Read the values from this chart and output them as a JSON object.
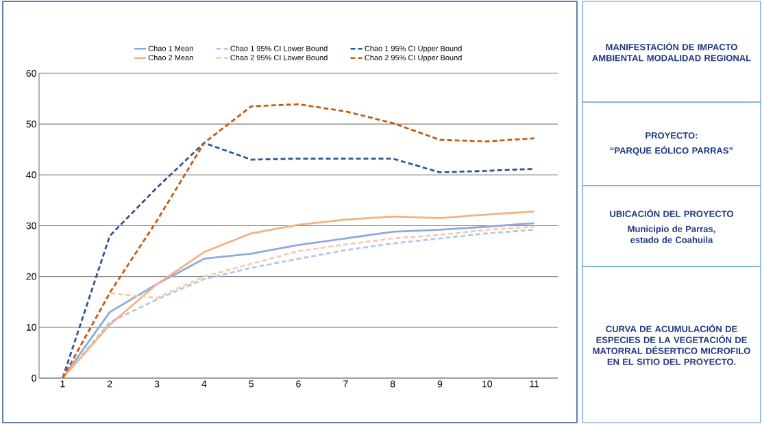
{
  "chart_data": {
    "type": "line",
    "categories": [
      "1",
      "2",
      "3",
      "4",
      "5",
      "6",
      "7",
      "8",
      "9",
      "10",
      "11"
    ],
    "series": [
      {
        "name": "Chao 1 Mean",
        "color": "#8eaadb",
        "line_style": "solid",
        "values": [
          0,
          13,
          18.5,
          23.5,
          24.5,
          26.2,
          27.5,
          28.8,
          29.2,
          29.8,
          30.5
        ]
      },
      {
        "name": "Chao 1 95% CI Lower Bound",
        "color": "#b4c7e7",
        "line_style": "dashed",
        "values": [
          0,
          11,
          15.5,
          19.5,
          21.7,
          23.5,
          25.2,
          26.5,
          27.5,
          28.5,
          29.2
        ]
      },
      {
        "name": "Chao 1 95% CI Upper Bound",
        "color": "#2f5597",
        "line_style": "dashed",
        "values": [
          0,
          28,
          37.5,
          46.3,
          43,
          43.2,
          43.2,
          43.2,
          40.5,
          40.8,
          41.2
        ]
      },
      {
        "name": "Chao 2 Mean",
        "color": "#f4b183",
        "line_style": "solid",
        "values": [
          0,
          10.5,
          18.5,
          24.8,
          28.5,
          30.2,
          31.2,
          31.8,
          31.5,
          32.2,
          32.8
        ]
      },
      {
        "name": "Chao 2 95% CI Lower Bound",
        "color": "#f8cbad",
        "line_style": "dashed",
        "values": [
          0,
          16.7,
          15.8,
          20,
          22.5,
          25,
          26.3,
          27.5,
          28.2,
          29.2,
          29.8
        ]
      },
      {
        "name": "Chao 2 95% CI Upper Bound",
        "color": "#c55a11",
        "line_style": "dashed",
        "values": [
          0,
          16.8,
          31,
          46.3,
          53.5,
          53.9,
          52.5,
          50.2,
          46.9,
          46.6,
          47.2
        ]
      }
    ],
    "ylim": [
      0,
      60
    ],
    "yticks": [
      0,
      10,
      20,
      30,
      40,
      50,
      60
    ],
    "grid": "y",
    "legend": "top",
    "annotations": [
      "MANIFESTACIÓN DE IMPACTO AMBIENTAL MODALIDAD REGIONAL",
      "PROYECTO:",
      "“PARQUE EÓLICO PARRAS”",
      "UBICACIÓN DEL PROYECTO",
      "Municipio de Parras, estado de Coahuila",
      "CURVA DE ACUMULACIÓN DE ESPECIES DE LA VEGETACIÓN DE MATORRAL DÉSERTICO MICROFILO EN EL SITIO DEL PROYECTO."
    ]
  }
}
